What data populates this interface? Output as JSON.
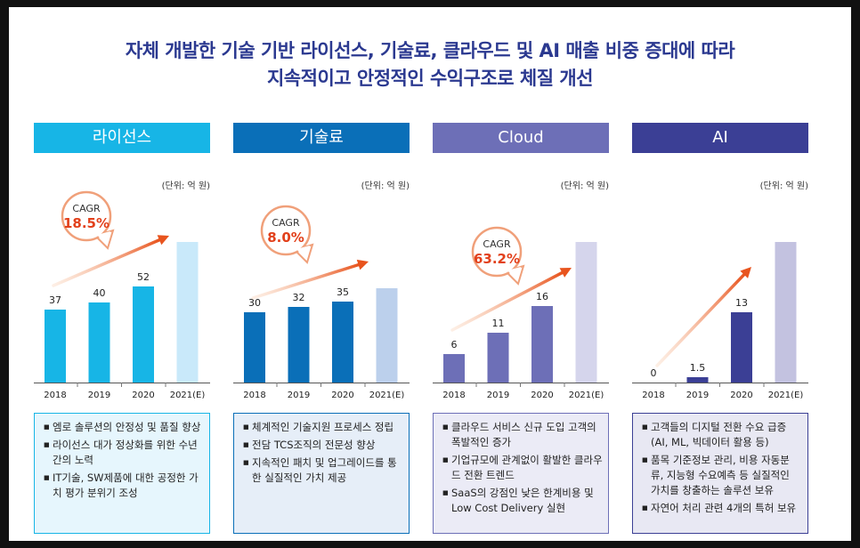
{
  "headline": {
    "line1": "자체 개발한 기술 기반 라이선스, 기술료, 클라우드 및 AI 매출 비중 증대에 따라",
    "line2": "지속적이고 안정적인 수익구조로 체질 개선"
  },
  "colors": {
    "headline": "#2b3990"
  },
  "chart_data": [
    {
      "type": "bar",
      "title": "라이선스",
      "unit": "(단위: 억 원)",
      "categories": [
        "2018",
        "2019",
        "2020",
        "2021(E)"
      ],
      "values": [
        37,
        40,
        52,
        null
      ],
      "data_labels": [
        "37",
        "40",
        "52",
        ""
      ],
      "cagr_label": "CAGR",
      "cagr_value": "18.5%",
      "colors": {
        "tab": "#17b5e6",
        "bar": "#17b5e6",
        "forecast": "#c9e9fa",
        "box_bg": "#e6f6fd",
        "box_border": "#17b5e6"
      },
      "bullets": [
        "엠로 솔루션의 안정성 및 품질 향상",
        "라이선스 대가 정상화를 위한 수년간의 노력",
        "IT기술, SW제품에 대한 공정한 가치 평가 분위기 조성"
      ]
    },
    {
      "type": "bar",
      "title": "기술료",
      "unit": "(단위: 억 원)",
      "categories": [
        "2018",
        "2019",
        "2020",
        "2021(E)"
      ],
      "values": [
        30,
        32,
        35,
        null
      ],
      "data_labels": [
        "30",
        "32",
        "35",
        ""
      ],
      "cagr_label": "CAGR",
      "cagr_value": "8.0%",
      "colors": {
        "tab": "#0a6fb8",
        "bar": "#0a6fb8",
        "forecast": "#bcd0ec",
        "box_bg": "#e6eef8",
        "box_border": "#0a6fb8"
      },
      "bullets": [
        "체계적인 기술지원 프로세스 정립",
        "전담 TCS조직의 전문성 향상",
        "지속적인 패치 및 업그레이드를 통한 실질적인 가치 제공"
      ]
    },
    {
      "type": "bar",
      "title": "Cloud",
      "unit": "(단위: 억 원)",
      "categories": [
        "2018",
        "2019",
        "2020",
        "2021(E)"
      ],
      "values": [
        6,
        11,
        16,
        null
      ],
      "data_labels": [
        "6",
        "11",
        "16",
        ""
      ],
      "cagr_label": "CAGR",
      "cagr_value": "63.2%",
      "colors": {
        "tab": "#6d6fb7",
        "bar": "#6d6fb7",
        "forecast": "#d5d5ec",
        "box_bg": "#ebebf6",
        "box_border": "#6d6fb7"
      },
      "bullets": [
        "클라우드 서비스 신규 도입 고객의 폭발적인 증가",
        "기업규모에 관계없이 활발한 클라우드 전환 트렌드",
        "SaaS의 강점인 낮은 한계비용 및 Low Cost Delivery 실현"
      ]
    },
    {
      "type": "bar",
      "title": "AI",
      "unit": "(단위: 억 원)",
      "categories": [
        "2018",
        "2019",
        "2020",
        "2021(E)"
      ],
      "values": [
        0,
        1.5,
        13,
        null
      ],
      "data_labels": [
        "0",
        "1.5",
        "13",
        ""
      ],
      "cagr_label": "",
      "cagr_value": "",
      "colors": {
        "tab": "#3b3f95",
        "bar": "#3b3f95",
        "forecast": "#c3c2e0",
        "box_bg": "#e8e8f3",
        "box_border": "#3b3f95"
      },
      "bullets": [
        "고객들의 디지털 전환 수요 급증 (AI, ML, 빅데이터 활용 등)",
        "품목 기준정보 관리, 비용 자동분류, 지능형 수요예측 등 실질적인 가치를 창출하는 솔루션 보유",
        "자연어 처리 관련 4개의 특허 보유"
      ]
    }
  ]
}
